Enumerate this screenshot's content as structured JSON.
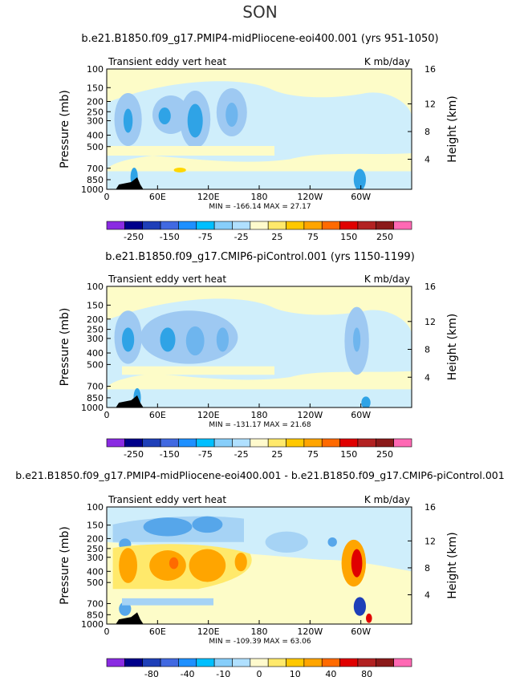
{
  "season": "SON",
  "colors": {
    "levels_full": [
      "#8a2be2",
      "#00008b",
      "#1e3fb8",
      "#4169e1",
      "#1e90ff",
      "#00bfff",
      "#87cefa",
      "#b0e0ff",
      "#fffacd",
      "#ffe96b",
      "#ffc800",
      "#ffa500",
      "#ff6a00",
      "#e00000",
      "#b22222",
      "#8b1a1a",
      "#ff69b4"
    ],
    "lightblue": "#cfeefb",
    "lightyellow": "#fdfcc8"
  },
  "chart_data": [
    {
      "type": "heatmap",
      "title": "b.e21.B1850.f09_g17.PMIP4-midPliocene-eoi400.001 (yrs 951-1050)",
      "left_label": "Transient eddy vert heat",
      "right_label": "K mb/day",
      "ylabel": "Pressure (mb)",
      "y2label": "Height (km)",
      "x_ticks": [
        "0",
        "60E",
        "120E",
        "180",
        "120W",
        "60W"
      ],
      "y_ticks": [
        "100",
        "150",
        "200",
        "250",
        "300",
        "400",
        "500",
        "700",
        "850",
        "1000"
      ],
      "y2_ticks": [
        "16",
        "12",
        "8",
        "4"
      ],
      "min_max": "MIN = -166.14   MAX =   27.17",
      "colorbar_labels": [
        "-250",
        "-150",
        "-75",
        "-25",
        "25",
        "75",
        "150",
        "250"
      ],
      "mode": "full"
    },
    {
      "type": "heatmap",
      "title": "b.e21.B1850.f09_g17.CMIP6-piControl.001 (yrs 1150-1199)",
      "left_label": "Transient eddy vert heat",
      "right_label": "K mb/day",
      "ylabel": "Pressure (mb)",
      "y2label": "Height (km)",
      "x_ticks": [
        "0",
        "60E",
        "120E",
        "180",
        "120W",
        "60W"
      ],
      "y_ticks": [
        "100",
        "150",
        "200",
        "250",
        "300",
        "400",
        "500",
        "700",
        "850",
        "1000"
      ],
      "y2_ticks": [
        "16",
        "12",
        "8",
        "4"
      ],
      "min_max": "MIN = -131.17   MAX =   21.68",
      "colorbar_labels": [
        "-250",
        "-150",
        "-75",
        "-25",
        "25",
        "75",
        "150",
        "250"
      ],
      "mode": "full"
    },
    {
      "type": "heatmap",
      "title": "b.e21.B1850.f09_g17.PMIP4-midPliocene-eoi400.001 - b.e21.B1850.f09_g17.CMIP6-piControl.001",
      "left_label": "Transient eddy vert heat",
      "right_label": "K mb/day",
      "ylabel": "Pressure (mb)",
      "y2label": "Height (km)",
      "x_ticks": [
        "0",
        "60E",
        "120E",
        "180",
        "120W",
        "60W"
      ],
      "y_ticks": [
        "100",
        "150",
        "200",
        "250",
        "300",
        "400",
        "500",
        "700",
        "850",
        "1000"
      ],
      "y2_ticks": [
        "16",
        "12",
        "8",
        "4"
      ],
      "min_max": "MIN = -109.39   MAX =   63.06",
      "colorbar_labels": [
        "-80",
        "-40",
        "-10",
        "0",
        "10",
        "40",
        "80"
      ],
      "mode": "diff"
    }
  ]
}
